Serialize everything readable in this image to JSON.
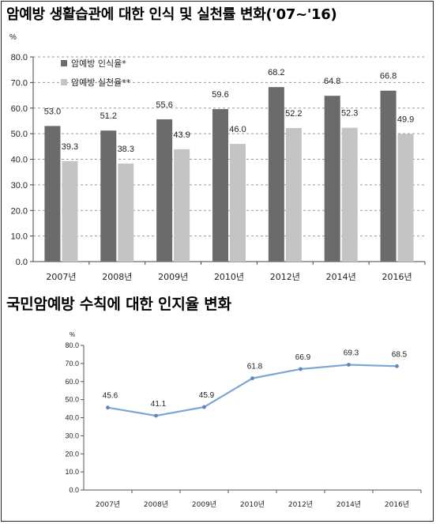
{
  "chart_data": [
    {
      "type": "bar",
      "title": "암예방 생활습관에 대한 인식 및 실천률 변화('07~'16)",
      "unit": "%",
      "categories": [
        "2007년",
        "2008년",
        "2009년",
        "2010년",
        "2012년",
        "2014년",
        "2016년"
      ],
      "series": [
        {
          "name": "암예방 인식율*",
          "values": [
            53.0,
            51.2,
            55.6,
            59.6,
            68.2,
            64.8,
            66.8
          ],
          "labels": [
            "53.0",
            "51.2",
            "55.6",
            "59.6",
            "68.2",
            "64.8",
            "66.8"
          ],
          "color": "#6b6b6b"
        },
        {
          "name": "암예방 실천율**",
          "values": [
            39.3,
            38.3,
            43.9,
            46.0,
            52.2,
            52.3,
            49.9
          ],
          "labels": [
            "39.3",
            "38.3",
            "43.9",
            "46.0",
            "52.2",
            "52.3",
            "49.9"
          ],
          "color": "#c4c4c4"
        }
      ],
      "yticks": [
        "0.0",
        "10.0",
        "20.0",
        "30.0",
        "40.0",
        "50.0",
        "60.0",
        "70.0",
        "80.0"
      ],
      "ylim": [
        0,
        80
      ],
      "legend": "top-left",
      "grid": true
    },
    {
      "type": "line",
      "title": "국민암예방 수칙에 대한 인지율 변화",
      "unit": "%",
      "categories": [
        "2007년",
        "2008년",
        "2009년",
        "2010년",
        "2012년",
        "2014년",
        "2016년"
      ],
      "series": [
        {
          "values": [
            45.6,
            41.1,
            45.9,
            61.8,
            66.9,
            69.3,
            68.5
          ],
          "labels": [
            "45.6",
            "41.1",
            "45.9",
            "61.8",
            "66.9",
            "69.3",
            "68.5"
          ],
          "color": "#7ea6d3"
        }
      ],
      "yticks": [
        "0.0",
        "10.0",
        "20.0",
        "30.0",
        "40.0",
        "50.0",
        "60.0",
        "70.0",
        "80.0"
      ],
      "ylim": [
        0,
        80
      ],
      "grid": false
    }
  ]
}
